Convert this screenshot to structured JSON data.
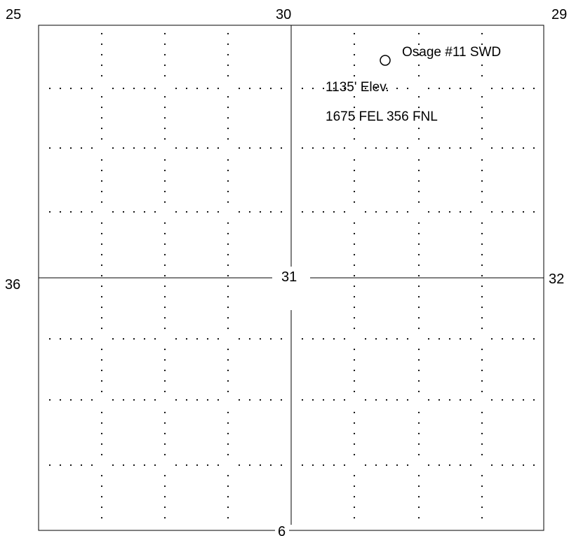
{
  "section_labels": {
    "top_left": "25",
    "top_center": "30",
    "top_right": "29",
    "middle_left": "36",
    "center": "31",
    "middle_right": "32",
    "bottom_center": "6"
  },
  "well": {
    "name": "Osage #11 SWD",
    "elevation": "1135' Elev.",
    "footage": "1675 FEL 356 FNL",
    "symbol": "well-circle-icon"
  },
  "colors": {
    "lines": "#000000",
    "background": "#ffffff"
  }
}
